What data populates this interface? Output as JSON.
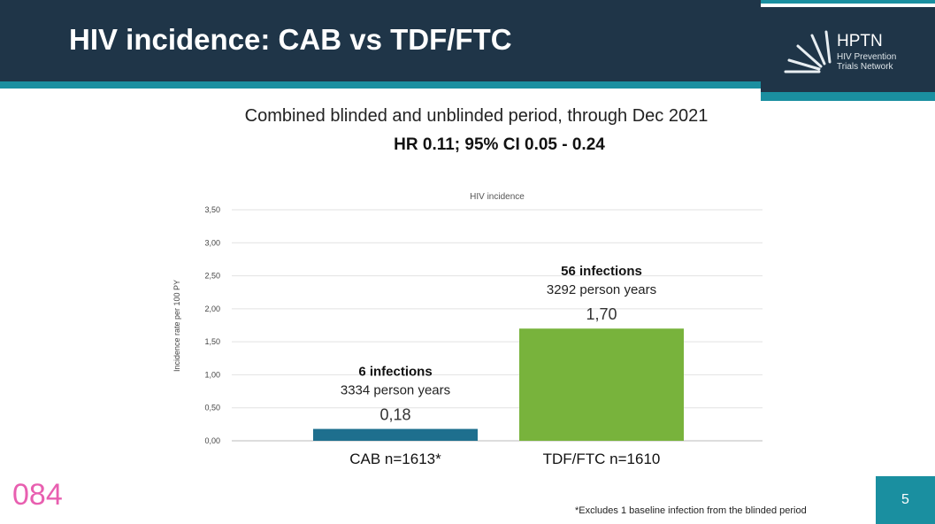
{
  "header": {
    "title": "HIV incidence: CAB vs TDF/FTC",
    "logo_name": "HPTN",
    "logo_sub": "HIV Prevention Trials Network"
  },
  "subtitle": "Combined blinded and unblinded period, through Dec 2021",
  "hr_text": "HR 0.11; 95% CI 0.05 - 0.24",
  "chart_data": {
    "type": "bar",
    "title": "HIV incidence",
    "ylabel": "Incidence rate per 100 PY",
    "ylim": [
      0,
      3.5
    ],
    "yticks": [
      "0,00",
      "0,50",
      "1,00",
      "1,50",
      "2,00",
      "2,50",
      "3,00",
      "3,50"
    ],
    "categories": [
      "CAB n=1613*",
      "TDF/FTC n=1610"
    ],
    "values": [
      0.18,
      1.7
    ],
    "value_labels": [
      "0,18",
      "1,70"
    ],
    "annotations": [
      {
        "bold": "6 infections",
        "text": "3334 person years"
      },
      {
        "bold": "56 infections",
        "text": "3292 person years"
      }
    ],
    "colors": [
      "#1e6f8e",
      "#78b33c"
    ]
  },
  "footnote": "*Excludes 1 baseline infection from the blinded period",
  "page_number": "5",
  "badge": "084"
}
